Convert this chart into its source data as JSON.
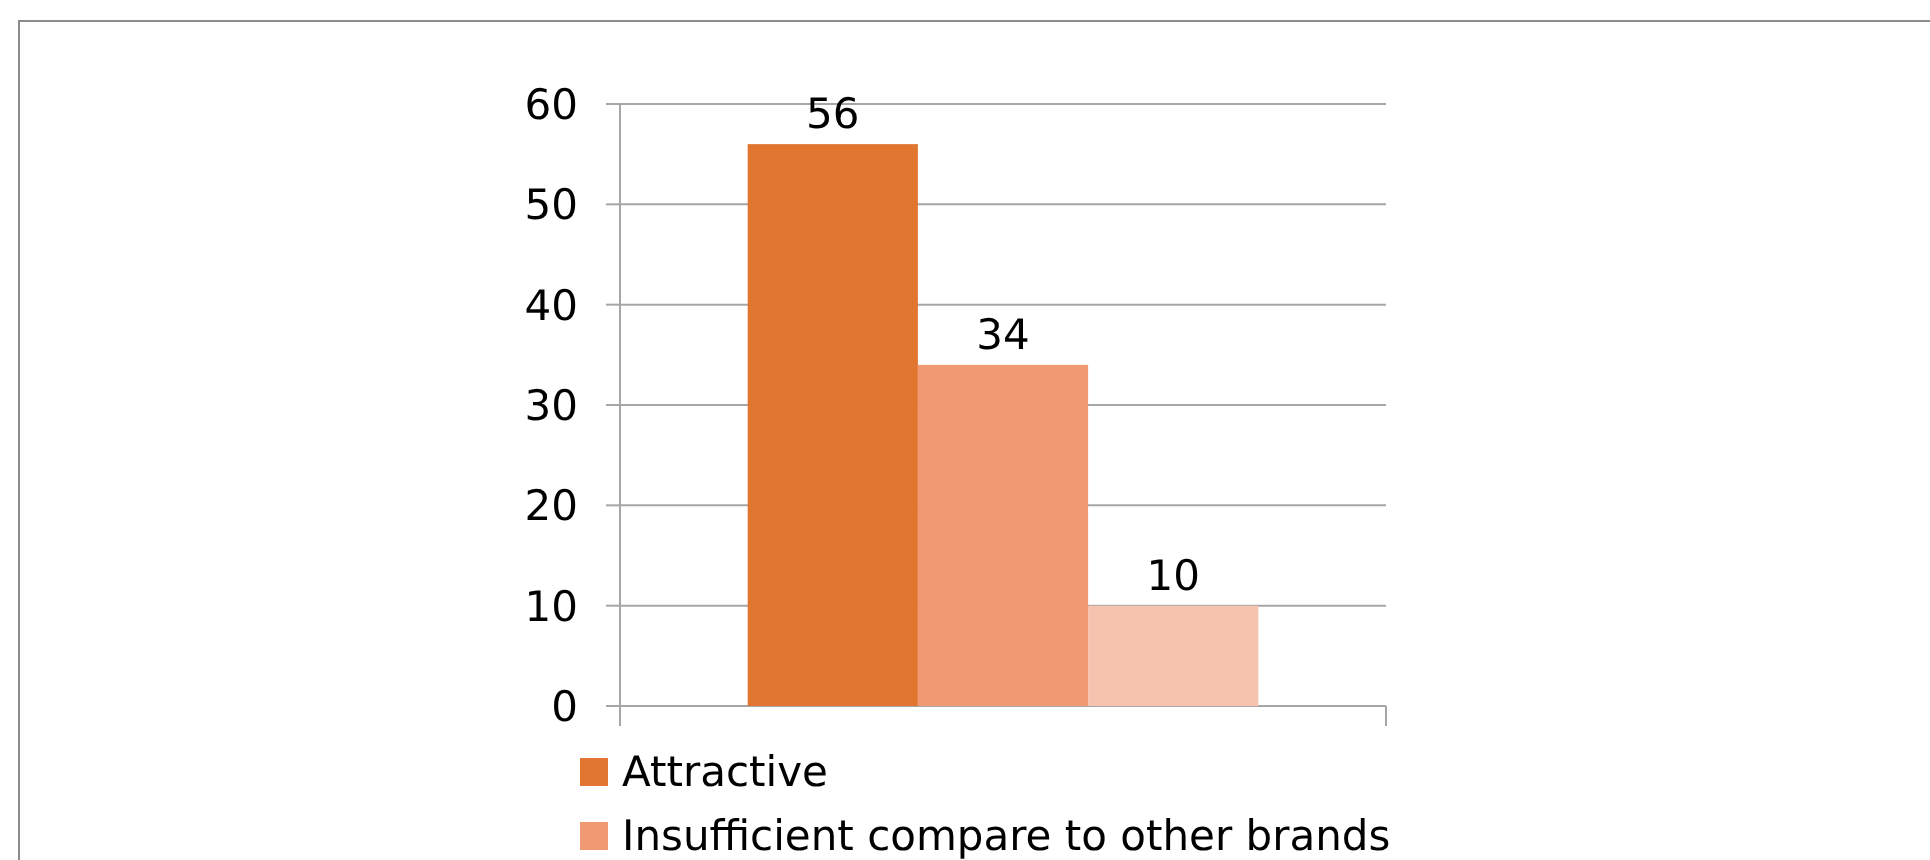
{
  "chart_data": {
    "type": "bar",
    "categories": [
      null
    ],
    "series": [
      {
        "name": "Attractive",
        "color": "#e07630",
        "values": [
          56
        ]
      },
      {
        "name": "Insufficient compare to other brands",
        "color": "#f09a74",
        "values": [
          34
        ]
      },
      {
        "color": "#f6c3af",
        "values": [
          10
        ]
      }
    ],
    "ylim": [
      0,
      60
    ],
    "yticks": [
      0,
      10,
      20,
      30,
      40,
      50,
      60
    ],
    "grid": "y",
    "legend": "bottom",
    "data_labels": true
  }
}
